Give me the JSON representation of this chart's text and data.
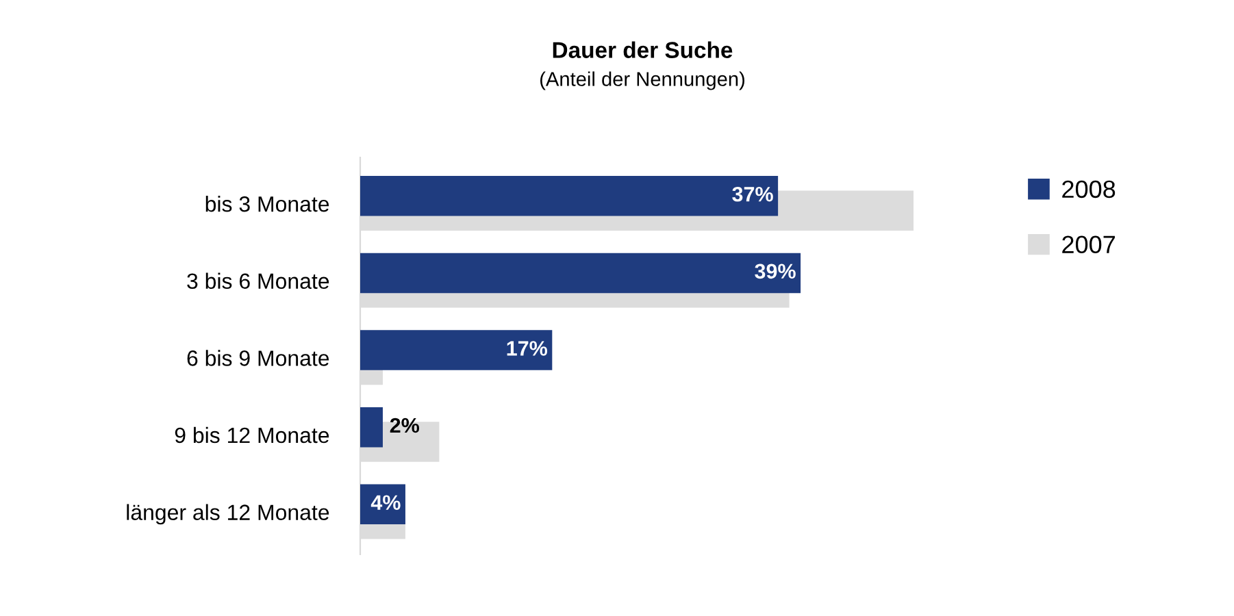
{
  "chart_data": {
    "type": "bar",
    "orientation": "horizontal",
    "title": "Dauer der Suche",
    "subtitle": "(Anteil der Nennungen)",
    "categories": [
      "bis 3 Monate",
      "3 bis 6 Monate",
      "6 bis 9 Monate",
      "9 bis 12 Monate",
      "länger als 12 Monate"
    ],
    "series": [
      {
        "name": "2008",
        "color": "#1f3c7f",
        "values": [
          37,
          39,
          17,
          2,
          4
        ],
        "value_labels": [
          "37%",
          "39%",
          "17%",
          "2%",
          "4%"
        ]
      },
      {
        "name": "2007",
        "color": "#dcdcdc",
        "values": [
          49,
          38,
          2,
          7,
          4
        ]
      }
    ],
    "legend": "right",
    "grid": false
  }
}
